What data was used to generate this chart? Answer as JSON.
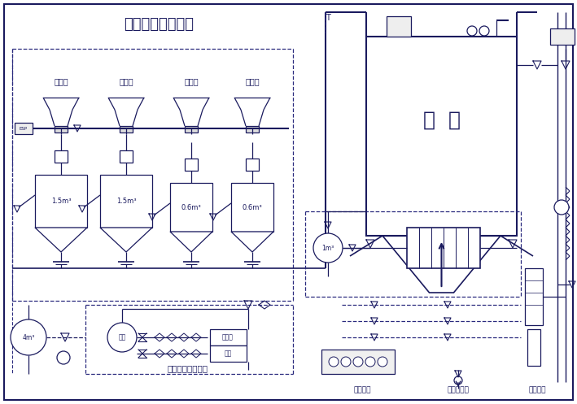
{
  "title": "浓相气力输送系统",
  "bg_color": "#ffffff",
  "lc": "#1a1a5e",
  "dc": "#2a2a7e",
  "field_labels": [
    "一电场",
    "二电场",
    "三电场",
    "四电场"
  ],
  "tank_labels": [
    "1.5m³",
    "1.5m³",
    "0.6m³",
    "0.6m³"
  ],
  "ash_label": "灰  库",
  "supply_label": "气力输送供气系统",
  "label_4m3": "4m³",
  "label_1m3": "1m³",
  "label_zongguan": "总罐",
  "label_kongya": "空压机",
  "label_beiyong": "备用",
  "bottom_labels": [
    "湿灰装车",
    "压力水进口",
    "干灰装车"
  ],
  "figsize": [
    7.09,
    4.97
  ],
  "dpi": 100
}
